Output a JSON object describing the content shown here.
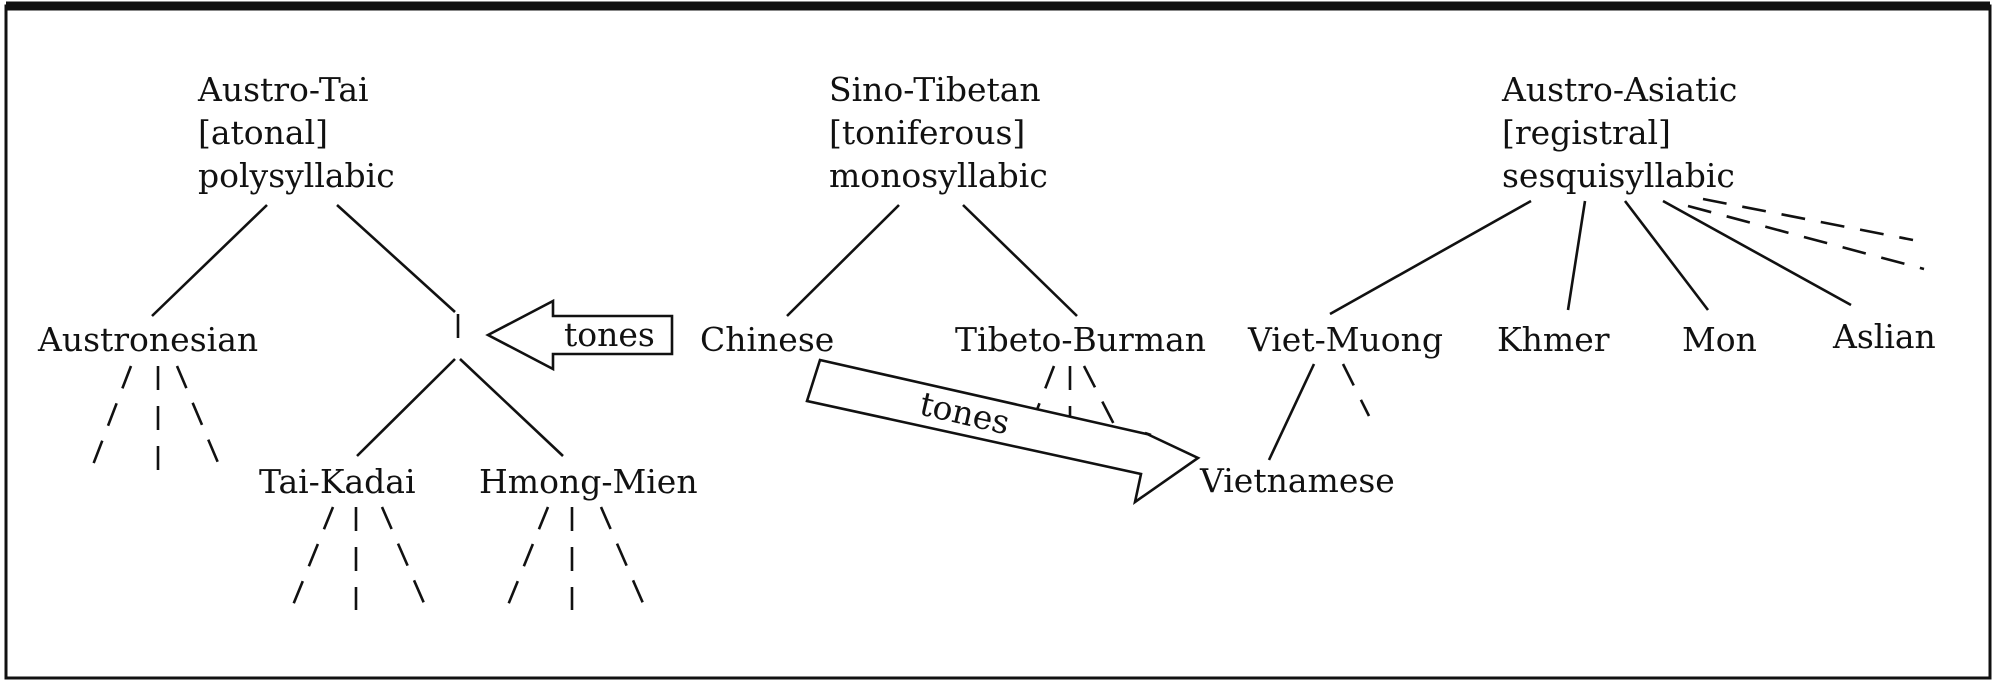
{
  "families": {
    "austro_tai": {
      "name": "Austro-Tai",
      "tone": "[atonal]",
      "syllable": "polysyllabic"
    },
    "sino_tibetan": {
      "name": "Sino-Tibetan",
      "tone": "[toniferous]",
      "syllable": "monosyllabic"
    },
    "austro_asiatic": {
      "name": "Austro-Asiatic",
      "tone": "[registral]",
      "syllable": "sesquisyllabic"
    }
  },
  "branches": {
    "austronesian": "Austronesian",
    "tai_kadai": "Tai-Kadai",
    "hmong_mien": "Hmong-Mien",
    "chinese": "Chinese",
    "tibeto_burman": "Tibeto-Burman",
    "viet_muong": "Viet-Muong",
    "khmer": "Khmer",
    "mon": "Mon",
    "aslian": "Aslian",
    "vietnamese": "Vietnamese"
  },
  "arrows": {
    "left_label": "tones",
    "diagonal_label": "tones"
  },
  "colors": {
    "ink": "#111111",
    "background": "#ffffff"
  }
}
